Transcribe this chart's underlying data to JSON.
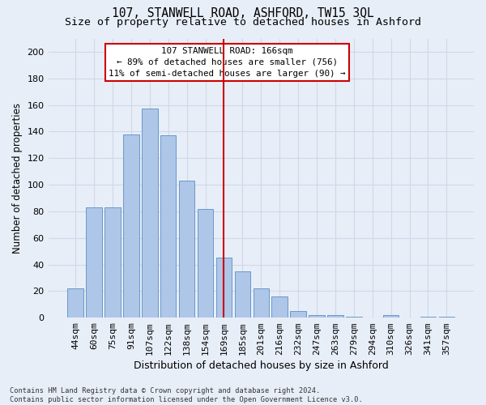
{
  "title": "107, STANWELL ROAD, ASHFORD, TW15 3QL",
  "subtitle": "Size of property relative to detached houses in Ashford",
  "xlabel": "Distribution of detached houses by size in Ashford",
  "ylabel": "Number of detached properties",
  "categories": [
    "44sqm",
    "60sqm",
    "75sqm",
    "91sqm",
    "107sqm",
    "122sqm",
    "138sqm",
    "154sqm",
    "169sqm",
    "185sqm",
    "201sqm",
    "216sqm",
    "232sqm",
    "247sqm",
    "263sqm",
    "279sqm",
    "294sqm",
    "310sqm",
    "326sqm",
    "341sqm",
    "357sqm"
  ],
  "values": [
    22,
    83,
    83,
    138,
    157,
    137,
    103,
    82,
    45,
    35,
    22,
    16,
    5,
    2,
    2,
    1,
    0,
    2,
    0,
    1,
    1
  ],
  "bar_color": "#aec6e8",
  "bar_edge_color": "#5a8fc2",
  "grid_color": "#d0d8e8",
  "background_color": "#e8eef8",
  "annotation_text": "107 STANWELL ROAD: 166sqm\n← 89% of detached houses are smaller (756)\n11% of semi-detached houses are larger (90) →",
  "vline_color": "#cc0000",
  "annotation_box_color": "#cc0000",
  "ylim": [
    0,
    210
  ],
  "yticks": [
    0,
    20,
    40,
    60,
    80,
    100,
    120,
    140,
    160,
    180,
    200
  ],
  "footer_text": "Contains HM Land Registry data © Crown copyright and database right 2024.\nContains public sector information licensed under the Open Government Licence v3.0.",
  "title_fontsize": 10.5,
  "subtitle_fontsize": 9.5,
  "ylabel_fontsize": 8.5,
  "xlabel_fontsize": 9,
  "tick_fontsize": 8,
  "annot_fontsize": 7.8,
  "footer_fontsize": 6.2
}
